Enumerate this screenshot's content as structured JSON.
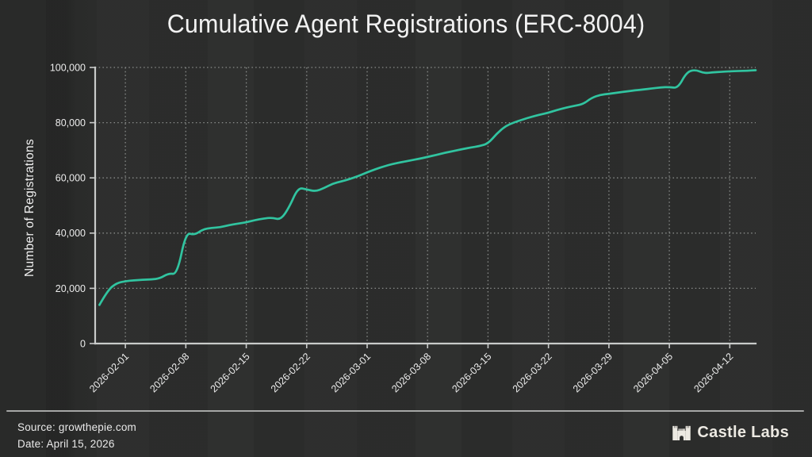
{
  "title": "Cumulative Agent Registrations (ERC-8004)",
  "y_axis": {
    "label": "Number of Registrations",
    "ticks": [
      {
        "value": 0,
        "label": "0"
      },
      {
        "value": 20000,
        "label": "20,000"
      },
      {
        "value": 40000,
        "label": "40,000"
      },
      {
        "value": 60000,
        "label": "60,000"
      },
      {
        "value": 80000,
        "label": "80,000"
      },
      {
        "value": 100000,
        "label": "100,000"
      }
    ]
  },
  "x_axis": {
    "ticks": [
      "2026-02-01",
      "2026-02-08",
      "2026-02-15",
      "2026-02-22",
      "2026-03-01",
      "2026-03-08",
      "2026-03-15",
      "2026-03-22",
      "2026-03-29",
      "2026-04-05",
      "2026-04-12"
    ]
  },
  "footer": {
    "source": "Source: growthepie.com",
    "date": "Date: April 15, 2026",
    "brand": {
      "icon": "castle-icon",
      "label": "Castle Labs"
    }
  },
  "colors": {
    "background": "#2c2d2c",
    "line": "#31c4a0",
    "grid": "#8f9290",
    "axis": "#c9cbca",
    "text": "#ececec",
    "brand": "#ece9e2"
  },
  "chart_data": {
    "type": "line",
    "title": "Cumulative Agent Registrations (ERC-8004)",
    "xlabel": "",
    "ylabel": "Number of Registrations",
    "ylim": [
      0,
      100000
    ],
    "x_domain": [
      "2026-01-28T12:00:00Z",
      "2026-04-15T00:00:00Z"
    ],
    "grid": true,
    "legend": "none",
    "series": [
      {
        "name": "Cumulative Agent Registrations",
        "color": "#31c4a0",
        "points": [
          [
            "2026-01-29",
            14000
          ],
          [
            "2026-01-30",
            19500
          ],
          [
            "2026-01-31",
            21900
          ],
          [
            "2026-02-01",
            22600
          ],
          [
            "2026-02-02",
            22900
          ],
          [
            "2026-02-03",
            23100
          ],
          [
            "2026-02-04",
            23200
          ],
          [
            "2026-02-05",
            23600
          ],
          [
            "2026-02-06",
            25400
          ],
          [
            "2026-02-07",
            25100
          ],
          [
            "2026-02-08",
            40200
          ],
          [
            "2026-02-09",
            39300
          ],
          [
            "2026-02-10",
            41400
          ],
          [
            "2026-02-11",
            41900
          ],
          [
            "2026-02-12",
            42100
          ],
          [
            "2026-02-13",
            42900
          ],
          [
            "2026-02-14",
            43400
          ],
          [
            "2026-02-15",
            43900
          ],
          [
            "2026-02-16",
            44700
          ],
          [
            "2026-02-17",
            45300
          ],
          [
            "2026-02-18",
            45600
          ],
          [
            "2026-02-19",
            44800
          ],
          [
            "2026-02-20",
            49500
          ],
          [
            "2026-02-21",
            56500
          ],
          [
            "2026-02-22",
            55800
          ],
          [
            "2026-02-23",
            55100
          ],
          [
            "2026-02-24",
            56300
          ],
          [
            "2026-02-25",
            57900
          ],
          [
            "2026-02-26",
            58700
          ],
          [
            "2026-02-27",
            59600
          ],
          [
            "2026-02-28",
            60700
          ],
          [
            "2026-03-01",
            62000
          ],
          [
            "2026-03-02",
            63200
          ],
          [
            "2026-03-03",
            64200
          ],
          [
            "2026-03-04",
            65100
          ],
          [
            "2026-03-05",
            65700
          ],
          [
            "2026-03-06",
            66300
          ],
          [
            "2026-03-07",
            66900
          ],
          [
            "2026-03-08",
            67600
          ],
          [
            "2026-03-09",
            68300
          ],
          [
            "2026-03-10",
            69100
          ],
          [
            "2026-03-11",
            69700
          ],
          [
            "2026-03-12",
            70400
          ],
          [
            "2026-03-13",
            71000
          ],
          [
            "2026-03-14",
            71500
          ],
          [
            "2026-03-15",
            72400
          ],
          [
            "2026-03-16",
            76000
          ],
          [
            "2026-03-17",
            78700
          ],
          [
            "2026-03-18",
            80100
          ],
          [
            "2026-03-19",
            81100
          ],
          [
            "2026-03-20",
            82100
          ],
          [
            "2026-03-21",
            82900
          ],
          [
            "2026-03-22",
            83600
          ],
          [
            "2026-03-23",
            84600
          ],
          [
            "2026-03-24",
            85400
          ],
          [
            "2026-03-25",
            86100
          ],
          [
            "2026-03-26",
            86700
          ],
          [
            "2026-03-27",
            89000
          ],
          [
            "2026-03-28",
            90100
          ],
          [
            "2026-03-29",
            90400
          ],
          [
            "2026-03-30",
            90900
          ],
          [
            "2026-03-31",
            91300
          ],
          [
            "2026-04-01",
            91700
          ],
          [
            "2026-04-02",
            92000
          ],
          [
            "2026-04-03",
            92400
          ],
          [
            "2026-04-04",
            92800
          ],
          [
            "2026-04-05",
            92900
          ],
          [
            "2026-04-06",
            92500
          ],
          [
            "2026-04-07",
            98300
          ],
          [
            "2026-04-08",
            99200
          ],
          [
            "2026-04-09",
            97900
          ],
          [
            "2026-04-10",
            98200
          ],
          [
            "2026-04-11",
            98400
          ],
          [
            "2026-04-12",
            98600
          ],
          [
            "2026-04-13",
            98700
          ],
          [
            "2026-04-14",
            98800
          ],
          [
            "2026-04-15",
            99000
          ]
        ]
      }
    ]
  }
}
